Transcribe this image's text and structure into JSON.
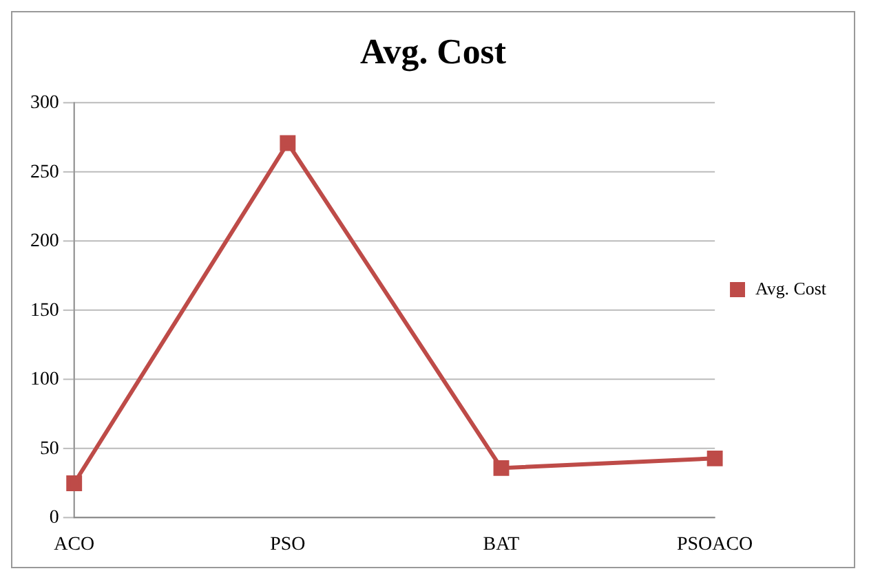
{
  "chart_data": {
    "type": "line",
    "title": "Avg. Cost",
    "categories": [
      "ACO",
      "PSO",
      "BAT",
      "PSOACO"
    ],
    "series": [
      {
        "name": "Avg. Cost",
        "color": "#be4b48",
        "values": [
          25,
          271,
          36,
          43
        ]
      }
    ],
    "ylim": [
      0,
      300
    ],
    "yticks": [
      0,
      50,
      100,
      150,
      200,
      250,
      300
    ],
    "grid": "y",
    "legend": "right",
    "marker": "square",
    "line_style": "solid"
  }
}
